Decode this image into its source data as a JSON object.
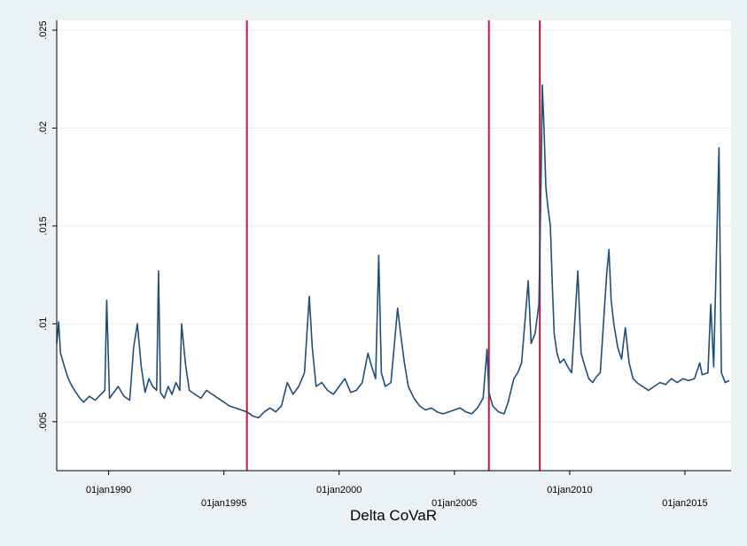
{
  "chart_data": {
    "type": "line",
    "title": "",
    "xlabel": "Delta CoVaR",
    "ylabel": "",
    "xlim": [
      "1987-10-01",
      "2017-01-01"
    ],
    "ylim": [
      0.0025,
      0.0255
    ],
    "grid": true,
    "legend": "none",
    "x_ticks": [
      {
        "date": "1990-01-01",
        "label": "01jan1990",
        "row": 0
      },
      {
        "date": "1995-01-01",
        "label": "01jan1995",
        "row": 1
      },
      {
        "date": "2000-01-01",
        "label": "01jan2000",
        "row": 0
      },
      {
        "date": "2005-01-01",
        "label": "01jan2005",
        "row": 1
      },
      {
        "date": "2010-01-01",
        "label": "01jan2010",
        "row": 0
      },
      {
        "date": "2015-01-01",
        "label": "01jan2015",
        "row": 1
      }
    ],
    "y_ticks": [
      {
        "value": 0.005,
        "label": ".005"
      },
      {
        "value": 0.01,
        "label": ".01"
      },
      {
        "value": 0.015,
        "label": ".015"
      },
      {
        "value": 0.02,
        "label": ".02"
      },
      {
        "value": 0.025,
        "label": ".025"
      }
    ],
    "vertical_lines": [
      "1996-01-01",
      "2006-07-01",
      "2008-09-15"
    ],
    "colors": {
      "series": "#1f4e79",
      "vlines": "#c0143c",
      "background": "#eaf2f3",
      "plot_bg": "#ffffff",
      "grid": "#e6eef0"
    },
    "series": [
      {
        "x": [
          "1987-10-01",
          "1987-11-01",
          "1987-12-01",
          "1988-02-01",
          "1988-04-01",
          "1988-06-01",
          "1988-08-01",
          "1988-10-01",
          "1988-12-01",
          "1989-03-01",
          "1989-06-01",
          "1989-09-01",
          "1989-11-01",
          "1989-12-01",
          "1990-01-15",
          "1990-03-01",
          "1990-06-01",
          "1990-09-01",
          "1990-12-01",
          "1991-02-01",
          "1991-04-01",
          "1991-06-01",
          "1991-08-01",
          "1991-10-01",
          "1991-12-01",
          "1992-02-01",
          "1992-03-01",
          "1992-04-01",
          "1992-06-01",
          "1992-08-01",
          "1992-10-01",
          "1992-12-01",
          "1993-02-01",
          "1993-03-01",
          "1993-05-01",
          "1993-07-01",
          "1993-10-01",
          "1994-01-01",
          "1994-04-01",
          "1994-07-01",
          "1994-10-01",
          "1995-01-01",
          "1995-04-01",
          "1995-07-01",
          "1995-10-01",
          "1996-01-01",
          "1996-04-01",
          "1996-07-01",
          "1996-10-01",
          "1997-01-01",
          "1997-04-01",
          "1997-07-01",
          "1997-10-01",
          "1998-01-01",
          "1998-04-01",
          "1998-07-01",
          "1998-09-15",
          "1998-11-01",
          "1999-01-01",
          "1999-04-01",
          "1999-07-01",
          "1999-10-01",
          "2000-01-01",
          "2000-04-01",
          "2000-07-01",
          "2000-10-01",
          "2001-01-01",
          "2001-04-01",
          "2001-06-01",
          "2001-08-01",
          "2001-09-20",
          "2001-11-01",
          "2002-01-01",
          "2002-04-01",
          "2002-07-15",
          "2002-09-01",
          "2002-11-01",
          "2003-01-01",
          "2003-04-01",
          "2003-07-01",
          "2003-10-01",
          "2004-01-01",
          "2004-04-01",
          "2004-07-01",
          "2004-10-01",
          "2005-01-01",
          "2005-04-01",
          "2005-07-01",
          "2005-10-01",
          "2006-01-01",
          "2006-04-01",
          "2006-06-01",
          "2006-07-01",
          "2006-09-01",
          "2006-12-01",
          "2007-02-28",
          "2007-05-01",
          "2007-08-01",
          "2007-10-01",
          "2007-12-01",
          "2008-01-20",
          "2008-03-15",
          "2008-05-01",
          "2008-07-01",
          "2008-09-01",
          "2008-10-10",
          "2008-10-25",
          "2008-11-20",
          "2008-12-20",
          "2009-01-20",
          "2009-03-01",
          "2009-04-01",
          "2009-05-01",
          "2009-06-15",
          "2009-08-01",
          "2009-10-01",
          "2009-12-01",
          "2010-02-01",
          "2010-05-10",
          "2010-07-01",
          "2010-09-01",
          "2010-11-01",
          "2011-01-01",
          "2011-03-01",
          "2011-05-01",
          "2011-08-10",
          "2011-09-15",
          "2011-10-20",
          "2011-12-01",
          "2012-02-01",
          "2012-04-01",
          "2012-06-01",
          "2012-08-01",
          "2012-10-01",
          "2012-12-01",
          "2013-03-01",
          "2013-06-01",
          "2013-09-01",
          "2013-12-01",
          "2014-03-01",
          "2014-06-01",
          "2014-09-01",
          "2014-12-01",
          "2015-03-01",
          "2015-06-01",
          "2015-08-25",
          "2015-10-01",
          "2016-01-01",
          "2016-02-15",
          "2016-04-01",
          "2016-06-24",
          "2016-08-01",
          "2016-10-01",
          "2016-12-01"
        ],
        "y": [
          0.009,
          0.0101,
          0.0085,
          0.0078,
          0.0072,
          0.0068,
          0.0065,
          0.0062,
          0.006,
          0.0063,
          0.0061,
          0.0064,
          0.0066,
          0.0112,
          0.0062,
          0.0064,
          0.0068,
          0.0063,
          0.0061,
          0.0088,
          0.01,
          0.0078,
          0.0065,
          0.0072,
          0.0068,
          0.0066,
          0.0127,
          0.0065,
          0.0062,
          0.0068,
          0.0064,
          0.007,
          0.0066,
          0.01,
          0.008,
          0.0066,
          0.0064,
          0.0062,
          0.0066,
          0.0064,
          0.0062,
          0.006,
          0.0058,
          0.0057,
          0.0056,
          0.0055,
          0.0053,
          0.0052,
          0.0055,
          0.0057,
          0.0055,
          0.0058,
          0.007,
          0.0064,
          0.0068,
          0.0075,
          0.0114,
          0.0088,
          0.0068,
          0.007,
          0.0066,
          0.0064,
          0.0068,
          0.0072,
          0.0065,
          0.0066,
          0.007,
          0.0085,
          0.0078,
          0.0072,
          0.0135,
          0.0075,
          0.0068,
          0.007,
          0.0108,
          0.0095,
          0.008,
          0.0068,
          0.0062,
          0.0058,
          0.0056,
          0.0057,
          0.0055,
          0.0054,
          0.0055,
          0.0056,
          0.0057,
          0.0055,
          0.0054,
          0.0057,
          0.0062,
          0.0087,
          0.0065,
          0.0058,
          0.0055,
          0.0054,
          0.006,
          0.0072,
          0.0075,
          0.008,
          0.01,
          0.0122,
          0.009,
          0.0095,
          0.011,
          0.0185,
          0.0222,
          0.02,
          0.017,
          0.016,
          0.015,
          0.012,
          0.0095,
          0.0085,
          0.008,
          0.0082,
          0.0078,
          0.0075,
          0.0127,
          0.0085,
          0.0078,
          0.0072,
          0.007,
          0.0073,
          0.0075,
          0.0125,
          0.0138,
          0.0112,
          0.01,
          0.0088,
          0.0082,
          0.0098,
          0.008,
          0.0072,
          0.007,
          0.0068,
          0.0066,
          0.0068,
          0.007,
          0.0069,
          0.0072,
          0.007,
          0.0072,
          0.0071,
          0.0072,
          0.008,
          0.0074,
          0.0075,
          0.011,
          0.0078,
          0.019,
          0.0075,
          0.007,
          0.0071
        ]
      }
    ]
  }
}
